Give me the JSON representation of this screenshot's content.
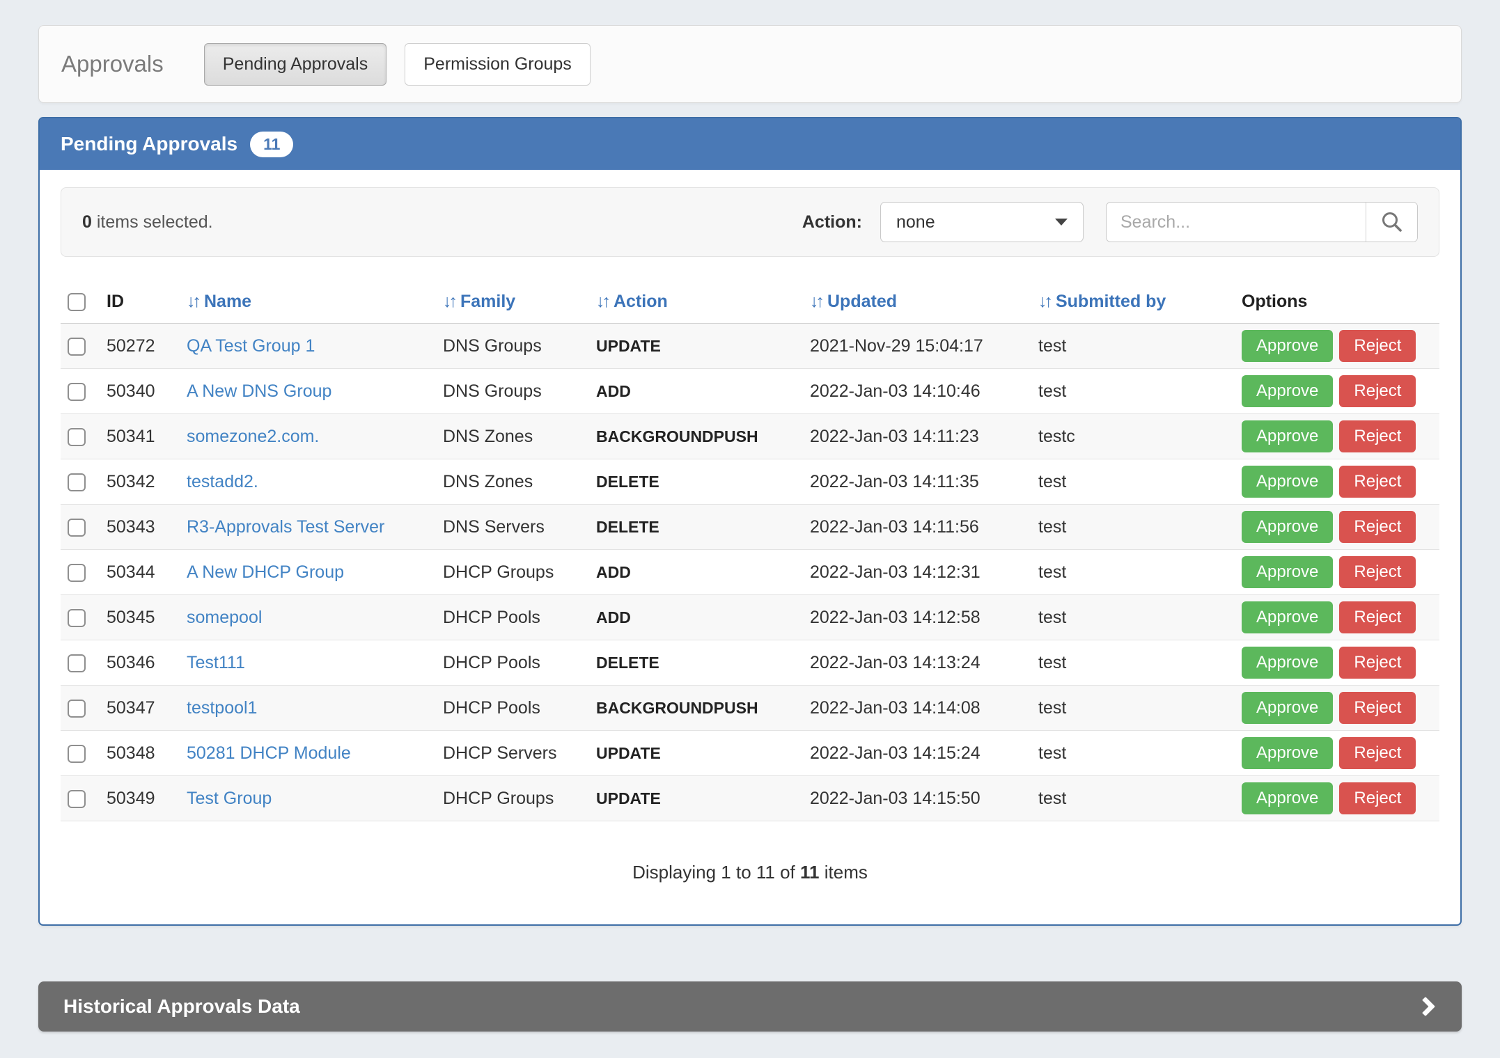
{
  "topbar": {
    "title": "Approvals",
    "tabs": [
      {
        "label": "Pending Approvals",
        "active": true
      },
      {
        "label": "Permission Groups",
        "active": false
      }
    ]
  },
  "panel": {
    "title": "Pending Approvals",
    "badge": "11",
    "toolbar": {
      "selected_count": "0",
      "selected_suffix": " items selected.",
      "action_label": "Action:",
      "action_value": "none",
      "search_placeholder": "Search..."
    },
    "table": {
      "columns": [
        {
          "label": "ID",
          "sortable": false
        },
        {
          "label": "Name",
          "sortable": true
        },
        {
          "label": "Family",
          "sortable": true
        },
        {
          "label": "Action",
          "sortable": true
        },
        {
          "label": "Updated",
          "sortable": true
        },
        {
          "label": "Submitted by",
          "sortable": true
        },
        {
          "label": "Options",
          "sortable": false
        }
      ],
      "sort_icon": "↓↑",
      "approve_label": "Approve",
      "reject_label": "Reject",
      "rows": [
        {
          "id": "50272",
          "name": "QA Test Group 1",
          "family": "DNS Groups",
          "action": "UPDATE",
          "updated": "2021-Nov-29 15:04:17",
          "submitted_by": "test",
          "submitted_clipped": false
        },
        {
          "id": "50340",
          "name": "A New DNS Group",
          "family": "DNS Groups",
          "action": "ADD",
          "updated": "2022-Jan-03 14:10:46",
          "submitted_by": "test",
          "submitted_clipped": false
        },
        {
          "id": "50341",
          "name": "somezone2.com.",
          "family": "DNS Zones",
          "action": "BACKGROUNDPUSH",
          "updated": "2022-Jan-03 14:11:23",
          "submitted_by": "testc",
          "submitted_clipped": true
        },
        {
          "id": "50342",
          "name": "testadd2.",
          "family": "DNS Zones",
          "action": "DELETE",
          "updated": "2022-Jan-03 14:11:35",
          "submitted_by": "test",
          "submitted_clipped": false
        },
        {
          "id": "50343",
          "name": "R3-Approvals Test Server",
          "family": "DNS Servers",
          "action": "DELETE",
          "updated": "2022-Jan-03 14:11:56",
          "submitted_by": "test",
          "submitted_clipped": false
        },
        {
          "id": "50344",
          "name": "A New DHCP Group",
          "family": "DHCP Groups",
          "action": "ADD",
          "updated": "2022-Jan-03 14:12:31",
          "submitted_by": "test",
          "submitted_clipped": false
        },
        {
          "id": "50345",
          "name": "somepool",
          "family": "DHCP Pools",
          "action": "ADD",
          "updated": "2022-Jan-03 14:12:58",
          "submitted_by": "test",
          "submitted_clipped": false
        },
        {
          "id": "50346",
          "name": "Test111",
          "family": "DHCP Pools",
          "action": "DELETE",
          "updated": "2022-Jan-03 14:13:24",
          "submitted_by": "test",
          "submitted_clipped": false
        },
        {
          "id": "50347",
          "name": "testpool1",
          "family": "DHCP Pools",
          "action": "BACKGROUNDPUSH",
          "updated": "2022-Jan-03 14:14:08",
          "submitted_by": "test",
          "submitted_clipped": false
        },
        {
          "id": "50348",
          "name": "50281 DHCP Module",
          "family": "DHCP Servers",
          "action": "UPDATE",
          "updated": "2022-Jan-03 14:15:24",
          "submitted_by": "test",
          "submitted_clipped": false
        },
        {
          "id": "50349",
          "name": "Test Group",
          "family": "DHCP Groups",
          "action": "UPDATE",
          "updated": "2022-Jan-03 14:15:50",
          "submitted_by": "test",
          "submitted_clipped": false
        }
      ]
    },
    "footer": {
      "prefix": "Displaying 1 to 11 of ",
      "total": "11",
      "suffix": " items"
    }
  },
  "historical": {
    "title": "Historical Approvals Data"
  },
  "colors": {
    "panel_header_blue": "#4a79b6",
    "link_blue": "#4283c4",
    "sort_header_blue": "#3c74b9",
    "approve_green": "#5cb85c",
    "reject_red": "#d9534f",
    "historical_gray": "#6d6d6d",
    "page_background": "#e9edf1"
  }
}
